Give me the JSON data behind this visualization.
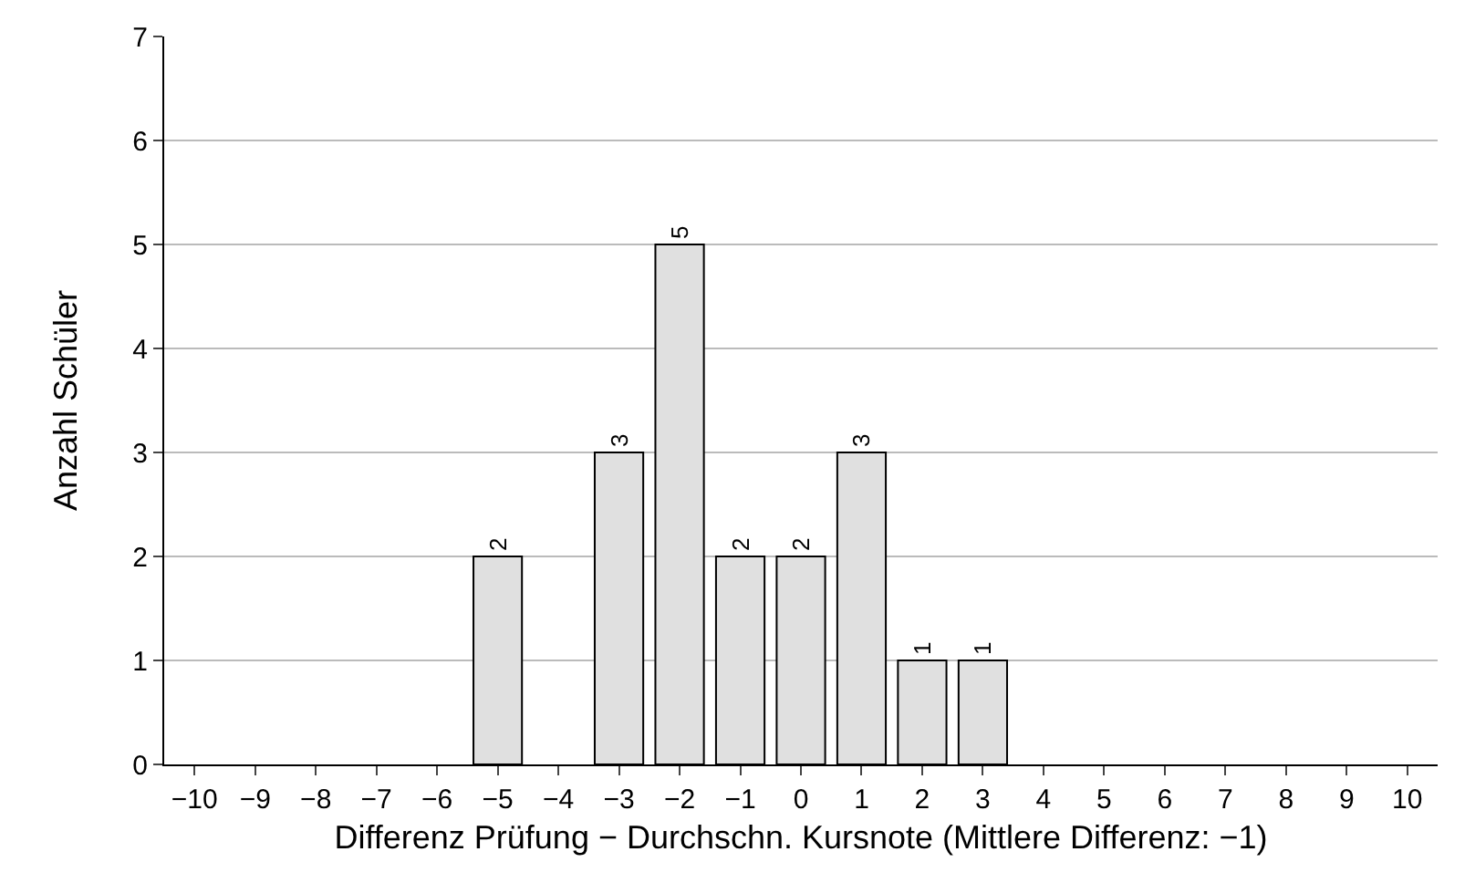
{
  "chart_data": {
    "type": "bar",
    "xlabel": "Differenz Prüfung − Durchschn. Kursnote (Mittlere Differenz: −1)",
    "ylabel": "Anzahl Schüler",
    "categories": [
      "−10",
      "−9",
      "−8",
      "−7",
      "−6",
      "−5",
      "−4",
      "−3",
      "−2",
      "−1",
      "0",
      "1",
      "2",
      "3",
      "4",
      "5",
      "6",
      "7",
      "8",
      "9",
      "10"
    ],
    "values": [
      0,
      0,
      0,
      0,
      0,
      2,
      0,
      3,
      5,
      2,
      2,
      3,
      1,
      1,
      0,
      0,
      0,
      0,
      0,
      0,
      0
    ],
    "value_labels": [
      null,
      null,
      null,
      null,
      null,
      "2",
      null,
      "3",
      "5",
      "2",
      "2",
      "3",
      "1",
      "1",
      null,
      null,
      null,
      null,
      null,
      null,
      null
    ],
    "color": "#e0e0e0",
    "ylim": [
      0,
      7
    ],
    "yticks": [
      0,
      1,
      2,
      3,
      4,
      5,
      6,
      7
    ],
    "grid": "y",
    "legend": false
  }
}
